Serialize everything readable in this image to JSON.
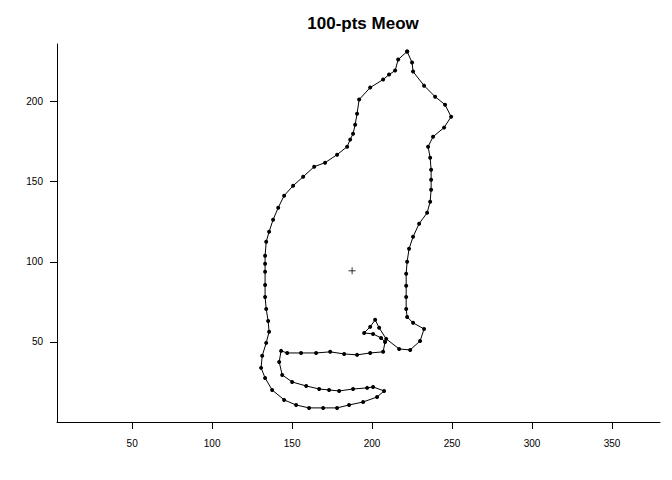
{
  "chart_data": {
    "type": "line",
    "title": "100-pts Meow",
    "xlim": [
      3,
      380
    ],
    "xticks": [
      50,
      100,
      150,
      200,
      250,
      300,
      350
    ],
    "ylim": [
      0,
      236
    ],
    "yticks": [
      50,
      100,
      150,
      200
    ],
    "grid": false,
    "series": [
      {
        "type": "line",
        "marker": "circle",
        "line_style": "solid",
        "color": "#000000",
        "x": [
          221.9,
          225,
          225.6,
          232.5,
          239.4,
          245.6,
          249.4,
          245,
          238.1,
          235,
          236.3,
          236.9,
          236.9,
          236.9,
          236.3,
          234.4,
          229.4,
          225.6,
          223.1,
          221.9,
          221.3,
          221.3,
          221.3,
          221.3,
          221.9,
          225.6,
          232.5,
          230,
          223.8,
          216.9,
          208.8,
          204.4,
          201.9,
          198.8,
          195,
          200.6,
          205.6,
          208.1,
          206.9,
          198.8,
          190.6,
          182.5,
          173.8,
          165,
          155.6,
          146.9,
          143.1,
          141.9,
          143.8,
          150,
          158.8,
          166.9,
          173.1,
          179.4,
          188.1,
          196.9,
          200.6,
          207.5,
          203.1,
          194.4,
          185.6,
          178.1,
          169.4,
          160.6,
          152.5,
          145,
          137.5,
          133.1,
          130.6,
          131.3,
          133.8,
          135.6,
          135,
          133.8,
          133.1,
          133.1,
          133.1,
          133.1,
          133.1,
          133.8,
          135.6,
          138.1,
          141.3,
          145,
          150.6,
          156.9,
          163.8,
          170.6,
          178.1,
          184.4,
          186.3,
          188.1,
          189.4,
          190.6,
          191.9,
          198.8,
          206.9,
          210.6,
          214.4,
          216.3
        ],
        "y": [
          231.3,
          224.4,
          218.8,
          210,
          203.1,
          198.1,
          190.6,
          183.8,
          178.1,
          171.9,
          165,
          157.5,
          151.3,
          145,
          137.5,
          130.6,
          123.8,
          115.6,
          108.1,
          100,
          92.5,
          85,
          78.1,
          70.6,
          65.6,
          61.9,
          58.1,
          50.6,
          45,
          45.6,
          51.9,
          58.8,
          63.8,
          59.4,
          55.6,
          55,
          52.5,
          50,
          43.8,
          43.1,
          41.9,
          42.5,
          43.8,
          43.1,
          43.1,
          43.1,
          44.4,
          37.5,
          29.4,
          25,
          22.5,
          20.6,
          20,
          19.4,
          20.6,
          21.3,
          21.9,
          19.4,
          15.6,
          12.5,
          10.6,
          8.8,
          8.8,
          8.8,
          10.6,
          13.8,
          20,
          27.5,
          33.8,
          41.3,
          49.4,
          56.3,
          63.1,
          70.6,
          78.1,
          85.6,
          93.8,
          98.8,
          103.8,
          112.5,
          118.8,
          126.3,
          133.8,
          141.3,
          147.5,
          153.1,
          159.4,
          161.9,
          166.9,
          171.9,
          176.3,
          180,
          185.6,
          192.5,
          201.3,
          208.8,
          213.8,
          216.9,
          219.4,
          226.3
        ]
      },
      {
        "type": "scatter",
        "marker": "plus",
        "color": "#000000",
        "x": [
          187.5
        ],
        "y": [
          94.4
        ]
      }
    ]
  }
}
